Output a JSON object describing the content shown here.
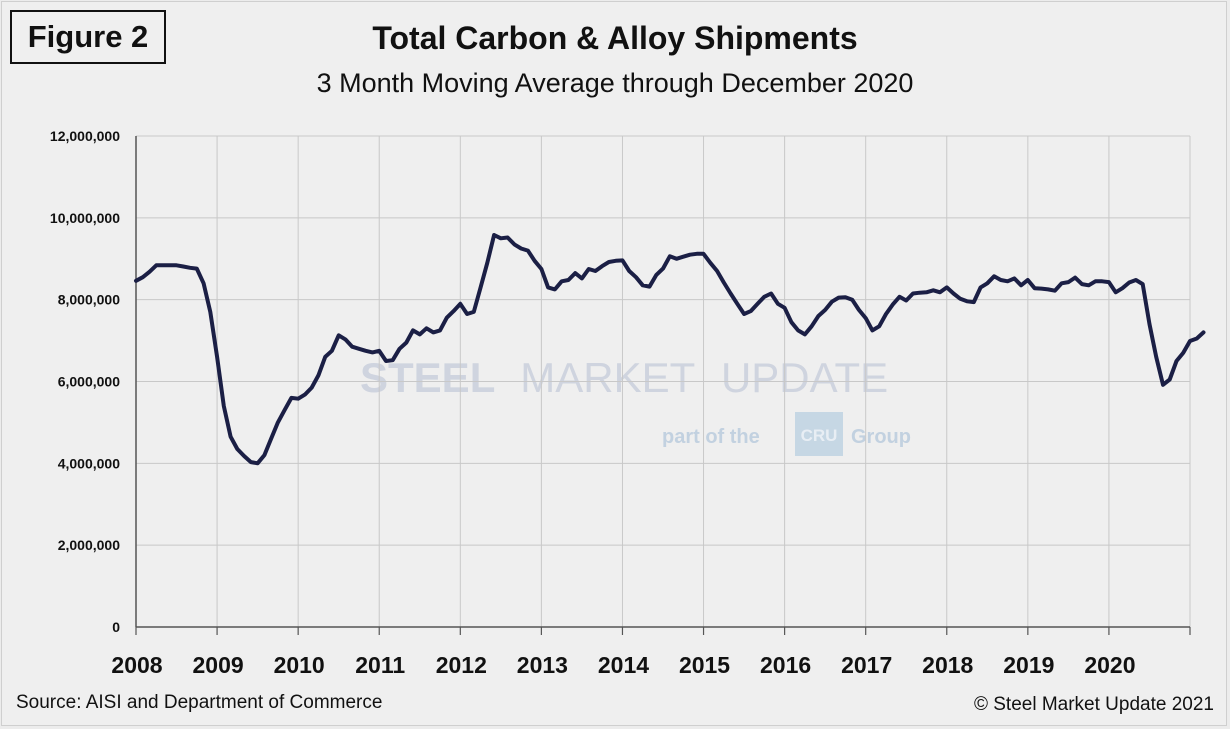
{
  "figure_label": "Figure 2",
  "source_note": "Source: AISI and Department of Commerce",
  "copyright_note": "© Steel Market Update 2021",
  "watermark": {
    "brand_main": "STEEL",
    "brand_rest": "MARKET",
    "brand_update": "UPDATE",
    "tagline_pre": "part of the",
    "tagline_badge": "CRU",
    "tagline_post": "Group"
  },
  "colors": {
    "line": "#1b1f45",
    "grid": "#c8c8c8",
    "axis": "#555555"
  },
  "chart_data": {
    "type": "line",
    "title": "Total Carbon & Alloy Shipments",
    "subtitle": "3 Month Moving Average through December 2020",
    "xlabel": "",
    "ylabel": "",
    "ylim": [
      0,
      12000000
    ],
    "yticks": [
      0,
      2000000,
      4000000,
      6000000,
      8000000,
      10000000,
      12000000
    ],
    "ytick_labels": [
      "0",
      "2,000,000",
      "4,000,000",
      "6,000,000",
      "8,000,000",
      "10,000,000",
      "12,000,000"
    ],
    "x_start_year": 2008,
    "x_end_year": 2021,
    "xtick_labels": [
      "2008",
      "2009",
      "2010",
      "2011",
      "2012",
      "2013",
      "2014",
      "2015",
      "2016",
      "2017",
      "2018",
      "2019",
      "2020"
    ],
    "grid": true,
    "series": [
      {
        "name": "Total Carbon & Alloy Shipments (3MMA)",
        "frequency": "monthly",
        "start": "2008-01",
        "values": [
          8460000,
          8550000,
          8680000,
          8840000,
          8840000,
          8840000,
          8840000,
          8810000,
          8780000,
          8760000,
          8400000,
          7700000,
          6600000,
          5400000,
          4650000,
          4350000,
          4180000,
          4030000,
          4000000,
          4200000,
          4600000,
          5000000,
          5300000,
          5600000,
          5580000,
          5680000,
          5850000,
          6150000,
          6600000,
          6750000,
          7130000,
          7030000,
          6850000,
          6800000,
          6750000,
          6710000,
          6750000,
          6500000,
          6520000,
          6800000,
          6950000,
          7250000,
          7150000,
          7300000,
          7200000,
          7250000,
          7560000,
          7720000,
          7900000,
          7650000,
          7700000,
          8300000,
          8900000,
          9580000,
          9500000,
          9520000,
          9350000,
          9250000,
          9200000,
          8950000,
          8750000,
          8300000,
          8250000,
          8450000,
          8480000,
          8650000,
          8520000,
          8750000,
          8700000,
          8820000,
          8920000,
          8950000,
          8960000,
          8700000,
          8550000,
          8350000,
          8320000,
          8600000,
          8760000,
          9060000,
          9000000,
          9050000,
          9100000,
          9120000,
          9120000,
          8900000,
          8700000,
          8420000,
          8150000,
          7900000,
          7650000,
          7720000,
          7900000,
          8070000,
          8150000,
          7900000,
          7800000,
          7450000,
          7250000,
          7150000,
          7350000,
          7600000,
          7750000,
          7950000,
          8050000,
          8060000,
          8000000,
          7750000,
          7550000,
          7250000,
          7350000,
          7650000,
          7880000,
          8070000,
          7980000,
          8150000,
          8170000,
          8180000,
          8230000,
          8180000,
          8300000,
          8150000,
          8020000,
          7960000,
          7940000,
          8300000,
          8400000,
          8570000,
          8480000,
          8450000,
          8520000,
          8350000,
          8480000,
          8280000,
          8270000,
          8250000,
          8220000,
          8400000,
          8430000,
          8540000,
          8380000,
          8350000,
          8450000,
          8450000,
          8430000,
          8180000,
          8280000,
          8420000,
          8480000,
          8380000,
          7400000,
          6600000,
          5920000,
          6050000,
          6500000,
          6700000,
          6990000,
          7050000,
          7200000
        ]
      }
    ]
  }
}
